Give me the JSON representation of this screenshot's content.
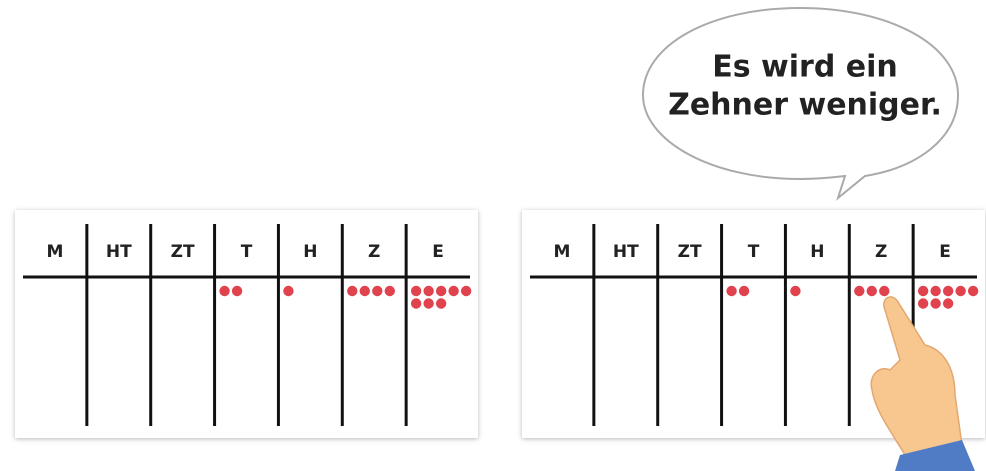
{
  "speech": [
    "Es wird ein",
    "Zehner weniger."
  ],
  "columns": [
    "M",
    "HT",
    "ZT",
    "T",
    "H",
    "Z",
    "E"
  ],
  "tables": [
    {
      "dots": [
        0,
        0,
        0,
        2,
        1,
        4,
        8
      ]
    },
    {
      "dots": [
        0,
        0,
        0,
        2,
        1,
        3,
        8
      ]
    }
  ]
}
